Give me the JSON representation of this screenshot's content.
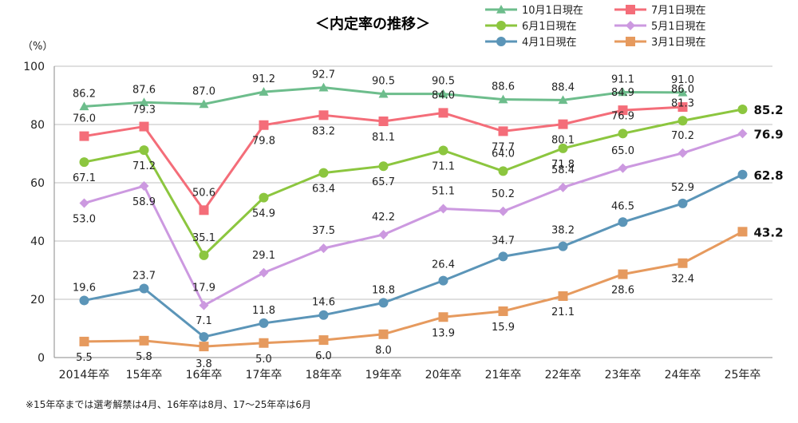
{
  "chart_data": {
    "type": "line",
    "title": "＜内定率の推移＞",
    "y_unit": "（%）",
    "categories": [
      "2014年卒",
      "15年卒",
      "16年卒",
      "17年卒",
      "18年卒",
      "19年卒",
      "20年卒",
      "21年卒",
      "22年卒",
      "23年卒",
      "24年卒",
      "25年卒"
    ],
    "ylim": [
      0,
      100
    ],
    "yticks": [
      0,
      20,
      40,
      60,
      80,
      100
    ],
    "grid": true,
    "legend_position": "top-right",
    "series": [
      {
        "name": "10月1日現在",
        "color": "#6dbd8c",
        "marker": "triangle",
        "values": [
          86.2,
          87.6,
          87.0,
          91.2,
          92.7,
          90.5,
          90.5,
          88.6,
          88.4,
          91.1,
          91.0,
          null
        ],
        "labels": [
          "86.2",
          "87.6",
          "87.0",
          "91.2",
          "92.7",
          "90.5",
          "90.5",
          "88.6",
          "88.4",
          "91.1",
          "91.0",
          ""
        ]
      },
      {
        "name": "7月1日現在",
        "color": "#f46d79",
        "marker": "square",
        "values": [
          76.0,
          79.3,
          50.6,
          79.8,
          83.2,
          81.1,
          84.0,
          77.7,
          80.1,
          84.9,
          86.0,
          null
        ],
        "labels": [
          "76.0",
          "79.3",
          "50.6",
          "79.8",
          "83.2",
          "81.1",
          "84.0",
          "77.7",
          "80.1",
          "84.9",
          "86.0",
          ""
        ]
      },
      {
        "name": "6月1日現在",
        "color": "#8cc63f",
        "marker": "circle",
        "values": [
          67.1,
          71.2,
          35.1,
          54.9,
          63.4,
          65.7,
          71.1,
          64.0,
          71.8,
          76.9,
          81.3,
          85.2
        ],
        "labels": [
          "67.1",
          "71.2",
          "35.1",
          "54.9",
          "63.4",
          "65.7",
          "71.1",
          "64.0",
          "71.8",
          "76.9",
          "81.3",
          "85.2"
        ]
      },
      {
        "name": "5月1日現在",
        "color": "#cc99e0",
        "marker": "diamond",
        "values": [
          53.0,
          58.9,
          17.9,
          29.1,
          37.5,
          42.2,
          51.1,
          50.2,
          58.4,
          65.0,
          70.2,
          76.9
        ],
        "labels": [
          "53.0",
          "58.9",
          "17.9",
          "29.1",
          "37.5",
          "42.2",
          "51.1",
          "50.2",
          "58.4",
          "65.0",
          "70.2",
          "76.9"
        ]
      },
      {
        "name": "4月1日現在",
        "color": "#5b95b8",
        "marker": "circle",
        "values": [
          19.6,
          23.7,
          7.1,
          11.8,
          14.6,
          18.8,
          26.4,
          34.7,
          38.2,
          46.5,
          52.9,
          62.8
        ],
        "labels": [
          "19.6",
          "23.7",
          "7.1",
          "11.8",
          "14.6",
          "18.8",
          "26.4",
          "34.7",
          "38.2",
          "46.5",
          "52.9",
          "62.8"
        ]
      },
      {
        "name": "3月1日現在",
        "color": "#e69a5e",
        "marker": "square",
        "values": [
          5.5,
          5.8,
          3.8,
          5.0,
          6.0,
          8.0,
          13.9,
          15.9,
          21.1,
          28.6,
          32.4,
          43.2
        ],
        "labels": [
          "5.5",
          "5.8",
          "3.8",
          "5.0",
          "6.0",
          "8.0",
          "13.9",
          "15.9",
          "21.1",
          "28.6",
          "32.4",
          "43.2"
        ]
      }
    ]
  },
  "note": "※15年卒までは選考解禁は4月、16年卒は8月、17～25年卒は6月"
}
